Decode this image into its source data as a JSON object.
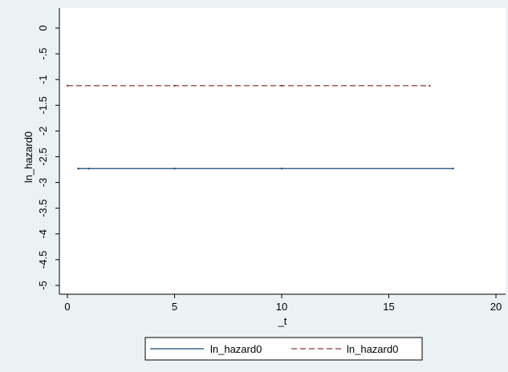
{
  "chart_data": {
    "type": "line",
    "xlabel": "_t",
    "ylabel": "ln_hazard0",
    "xlim": [
      0,
      20
    ],
    "ylim": [
      -5,
      0
    ],
    "x_ticks": [
      0,
      5,
      10,
      15,
      20
    ],
    "y_ticks": [
      0,
      -0.5,
      -1,
      -1.5,
      -2,
      -2.5,
      -3,
      -3.5,
      -4,
      -4.5,
      -5
    ],
    "x_tick_labels": [
      "0",
      "5",
      "10",
      "15",
      "20"
    ],
    "y_tick_labels": [
      "0",
      "-.5",
      "-1",
      "-1.5",
      "-2",
      "-2.5",
      "-3",
      "-3.5",
      "-4",
      "-4.5",
      "-5"
    ],
    "grid": false,
    "legend_position": "bottom",
    "series": [
      {
        "name": "ln_hazard0",
        "style": "solid",
        "color": "#1a476f",
        "x": [
          0.5,
          1,
          5,
          10,
          18
        ],
        "y": [
          -2.73,
          -2.73,
          -2.73,
          -2.73,
          -2.73
        ]
      },
      {
        "name": "ln_hazard0",
        "style": "dashed",
        "color": "#90353b",
        "x": [
          0,
          5,
          10,
          16.9
        ],
        "y": [
          -1.12,
          -1.12,
          -1.12,
          -1.12
        ]
      }
    ],
    "colors": {
      "background": "#eaf2f3",
      "plot_background": "#ffffff",
      "axis": "#000000"
    }
  }
}
